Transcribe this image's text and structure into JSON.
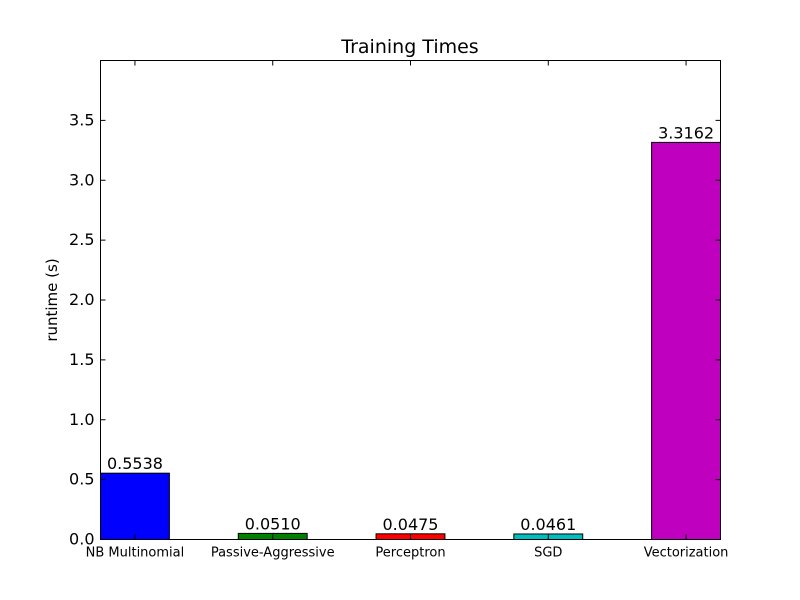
{
  "chart_data": {
    "type": "bar",
    "title": "Training Times",
    "xlabel": "",
    "ylabel": "runtime (s)",
    "ylim": [
      0,
      4.0
    ],
    "yticks": [
      0.0,
      0.5,
      1.0,
      1.5,
      2.0,
      2.5,
      3.0,
      3.5
    ],
    "ytick_labels": [
      "0.0",
      "0.5",
      "1.0",
      "1.5",
      "2.0",
      "2.5",
      "3.0",
      "3.5"
    ],
    "grid": false,
    "categories": [
      "NB Multinomial",
      "Passive-Aggressive",
      "Perceptron",
      "SGD",
      "Vectorization"
    ],
    "values": [
      0.5538,
      0.051,
      0.0475,
      0.0461,
      3.3162
    ],
    "value_labels": [
      "0.5538",
      "0.0510",
      "0.0475",
      "0.0461",
      "3.3162"
    ],
    "colors": [
      "#0000ff",
      "#008000",
      "#ff0000",
      "#00bfbf",
      "#bf00bf"
    ]
  }
}
